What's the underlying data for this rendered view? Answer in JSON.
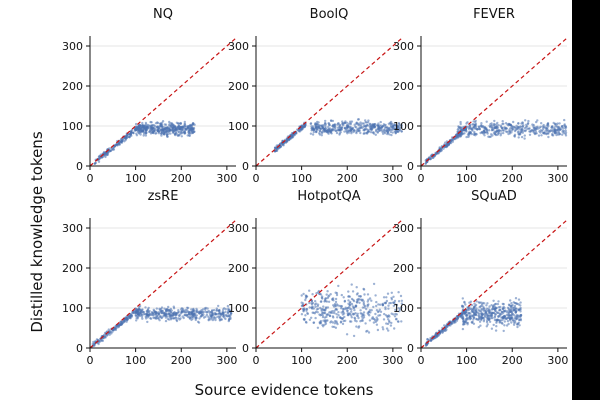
{
  "figure": {
    "xlabel": "Source evidence tokens",
    "ylabel": "Distilled knowledge tokens",
    "point_color": "#4c72b0",
    "diagonal_color": "#c81414"
  },
  "chart_data": [
    {
      "type": "scatter",
      "title": "NQ",
      "xlim": [
        0,
        320
      ],
      "ylim": [
        0,
        325
      ],
      "xticks": [
        "0",
        "100",
        "200",
        "300"
      ],
      "yticks": [
        "0",
        "100",
        "200",
        "300"
      ],
      "reference_line": "y = x",
      "clusters": [
        {
          "x": [
            10,
            110
          ],
          "y": [
            10,
            100
          ]
        },
        {
          "x": [
            100,
            230
          ],
          "y": [
            70,
            115
          ]
        }
      ]
    },
    {
      "type": "scatter",
      "title": "BoolQ",
      "xlim": [
        0,
        320
      ],
      "ylim": [
        0,
        325
      ],
      "xticks": [
        "0",
        "100",
        "200",
        "300"
      ],
      "yticks": [
        "0",
        "100",
        "200",
        "300"
      ],
      "reference_line": "y = x",
      "clusters": [
        {
          "x": [
            40,
            110
          ],
          "y": [
            40,
            105
          ]
        },
        {
          "x": [
            120,
            320
          ],
          "y": [
            70,
            120
          ]
        }
      ]
    },
    {
      "type": "scatter",
      "title": "FEVER",
      "xlim": [
        0,
        320
      ],
      "ylim": [
        0,
        325
      ],
      "xticks": [
        "0",
        "100",
        "200",
        "300"
      ],
      "yticks": [
        "0",
        "100",
        "200",
        "300"
      ],
      "reference_line": "y = x",
      "clusters": [
        {
          "x": [
            10,
            100
          ],
          "y": [
            10,
            95
          ]
        },
        {
          "x": [
            80,
            320
          ],
          "y": [
            65,
            120
          ]
        }
      ]
    },
    {
      "type": "scatter",
      "title": "zsRE",
      "xlim": [
        0,
        320
      ],
      "ylim": [
        0,
        325
      ],
      "xticks": [
        "0",
        "100",
        "200",
        "300"
      ],
      "yticks": [
        "0",
        "100",
        "200",
        "300"
      ],
      "reference_line": "y = x",
      "clusters": [
        {
          "x": [
            5,
            110
          ],
          "y": [
            5,
            100
          ]
        },
        {
          "x": [
            100,
            310
          ],
          "y": [
            60,
            110
          ]
        }
      ]
    },
    {
      "type": "scatter",
      "title": "HotpotQA",
      "xlim": [
        0,
        320
      ],
      "ylim": [
        0,
        325
      ],
      "xticks": [
        "0",
        "100",
        "200",
        "300"
      ],
      "yticks": [
        "0",
        "100",
        "200",
        "300"
      ],
      "reference_line": "y = x",
      "clusters": [
        {
          "x": [
            100,
            320
          ],
          "y": [
            20,
            170
          ]
        }
      ]
    },
    {
      "type": "scatter",
      "title": "SQuAD",
      "xlim": [
        0,
        320
      ],
      "ylim": [
        0,
        325
      ],
      "xticks": [
        "0",
        "100",
        "200",
        "300"
      ],
      "yticks": [
        "0",
        "100",
        "200",
        "300"
      ],
      "reference_line": "y = x",
      "clusters": [
        {
          "x": [
            10,
            100
          ],
          "y": [
            10,
            95
          ]
        },
        {
          "x": [
            90,
            220
          ],
          "y": [
            40,
            130
          ]
        }
      ]
    }
  ]
}
